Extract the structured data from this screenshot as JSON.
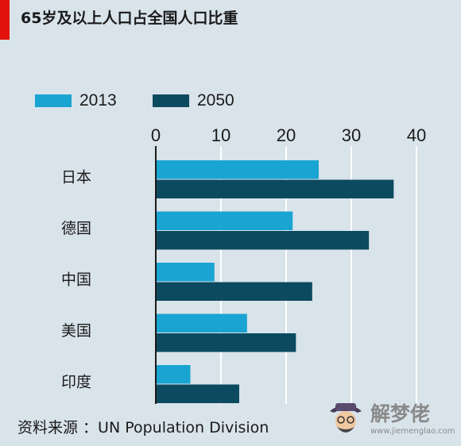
{
  "chart_data": {
    "type": "bar",
    "orientation": "horizontal",
    "title": "65岁及以上人口占全国人口比重",
    "categories": [
      "日本",
      "德国",
      "中国",
      "美国",
      "印度"
    ],
    "series": [
      {
        "name": "2013",
        "values": [
          25,
          21,
          9,
          14,
          5.3
        ],
        "color": "#1aa4d1"
      },
      {
        "name": "2050",
        "values": [
          36.5,
          32.7,
          24,
          21.5,
          12.8
        ],
        "color": "#0c4a60"
      }
    ],
    "xticks": [
      0,
      10,
      20,
      30,
      40
    ],
    "xlim": [
      0,
      40
    ],
    "x_axis_position": "top",
    "grid": "vertical",
    "legend_position": "top-left",
    "source": "资料来源 ：UN Population Division"
  },
  "watermark": {
    "text": "解梦佬",
    "url": "www.jiemenglao.com"
  }
}
